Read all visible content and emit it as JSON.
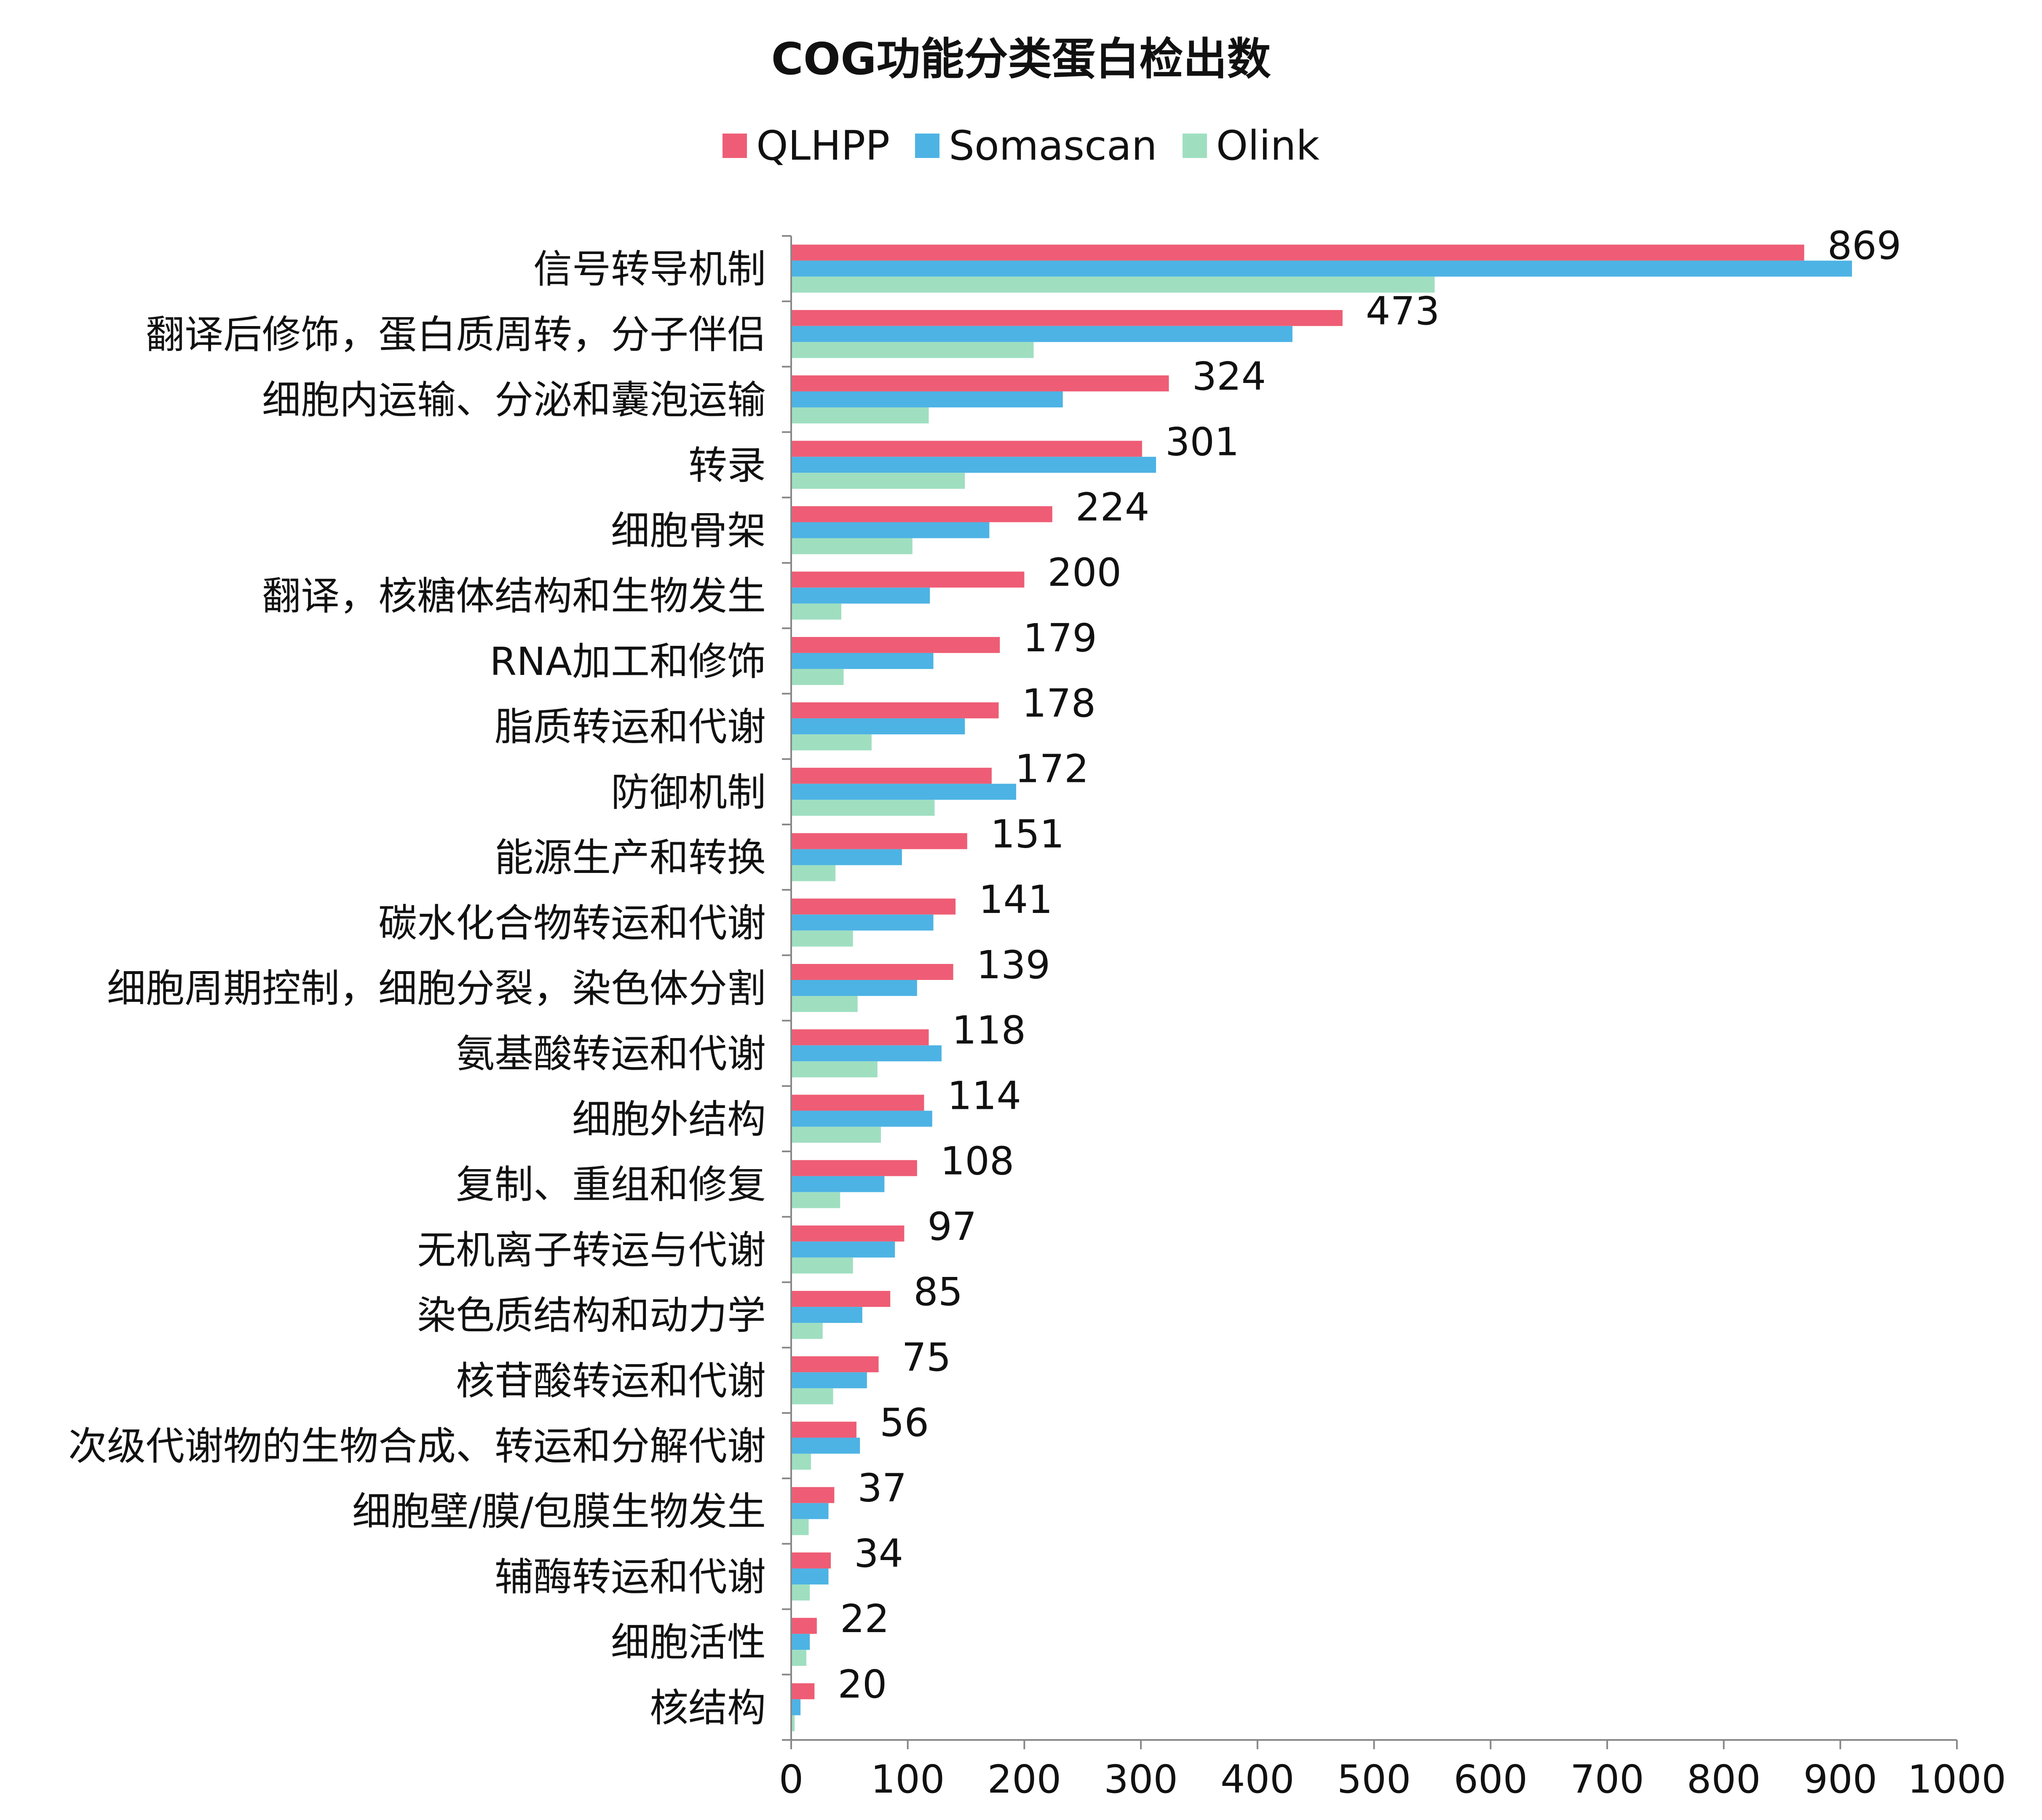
{
  "chart_data": {
    "type": "bar",
    "orientation": "horizontal",
    "title": "COG功能分类蛋白检出数",
    "categories": [
      "信号转导机制",
      "翻译后修饰，蛋白质周转，分子伴侣",
      "细胞内运输、分泌和囊泡运输",
      "转录",
      "细胞骨架",
      "翻译，核糖体结构和生物发生",
      "RNA加工和修饰",
      "脂质转运和代谢",
      "防御机制",
      "能源生产和转换",
      "碳水化合物转运和代谢",
      "细胞周期控制，细胞分裂，染色体分割",
      "氨基酸转运和代谢",
      "细胞外结构",
      "复制、重组和修复",
      "无机离子转运与代谢",
      "染色质结构和动力学",
      "核苷酸转运和代谢",
      "次级代谢物的生物合成、转运和分解代谢",
      "细胞壁/膜/包膜生物发生",
      "辅酶转运和代谢",
      "细胞活性",
      "核结构"
    ],
    "series": [
      {
        "name": "QLHPP",
        "color": "#ee5d75",
        "values": [
          869,
          473,
          324,
          301,
          224,
          200,
          179,
          178,
          172,
          151,
          141,
          139,
          118,
          114,
          108,
          97,
          85,
          75,
          56,
          37,
          34,
          22,
          20
        ]
      },
      {
        "name": "Somascan",
        "color": "#4db3e4",
        "values": [
          910,
          430,
          233,
          313,
          170,
          119,
          122,
          149,
          193,
          95,
          122,
          108,
          129,
          121,
          80,
          89,
          61,
          65,
          59,
          32,
          32,
          16,
          8
        ]
      },
      {
        "name": "Olink",
        "color": "#9fdfc0",
        "values": [
          552,
          208,
          118,
          149,
          104,
          43,
          45,
          69,
          123,
          38,
          53,
          57,
          74,
          77,
          42,
          53,
          27,
          36,
          17,
          15,
          16,
          13,
          3
        ]
      }
    ],
    "data_labels_series": "QLHPP",
    "xlim": [
      0,
      1000
    ],
    "xticks": [
      "0",
      "100",
      "200",
      "300",
      "400",
      "500",
      "600",
      "700",
      "800",
      "900",
      "1000"
    ],
    "legend_position": "top",
    "grid": false
  }
}
